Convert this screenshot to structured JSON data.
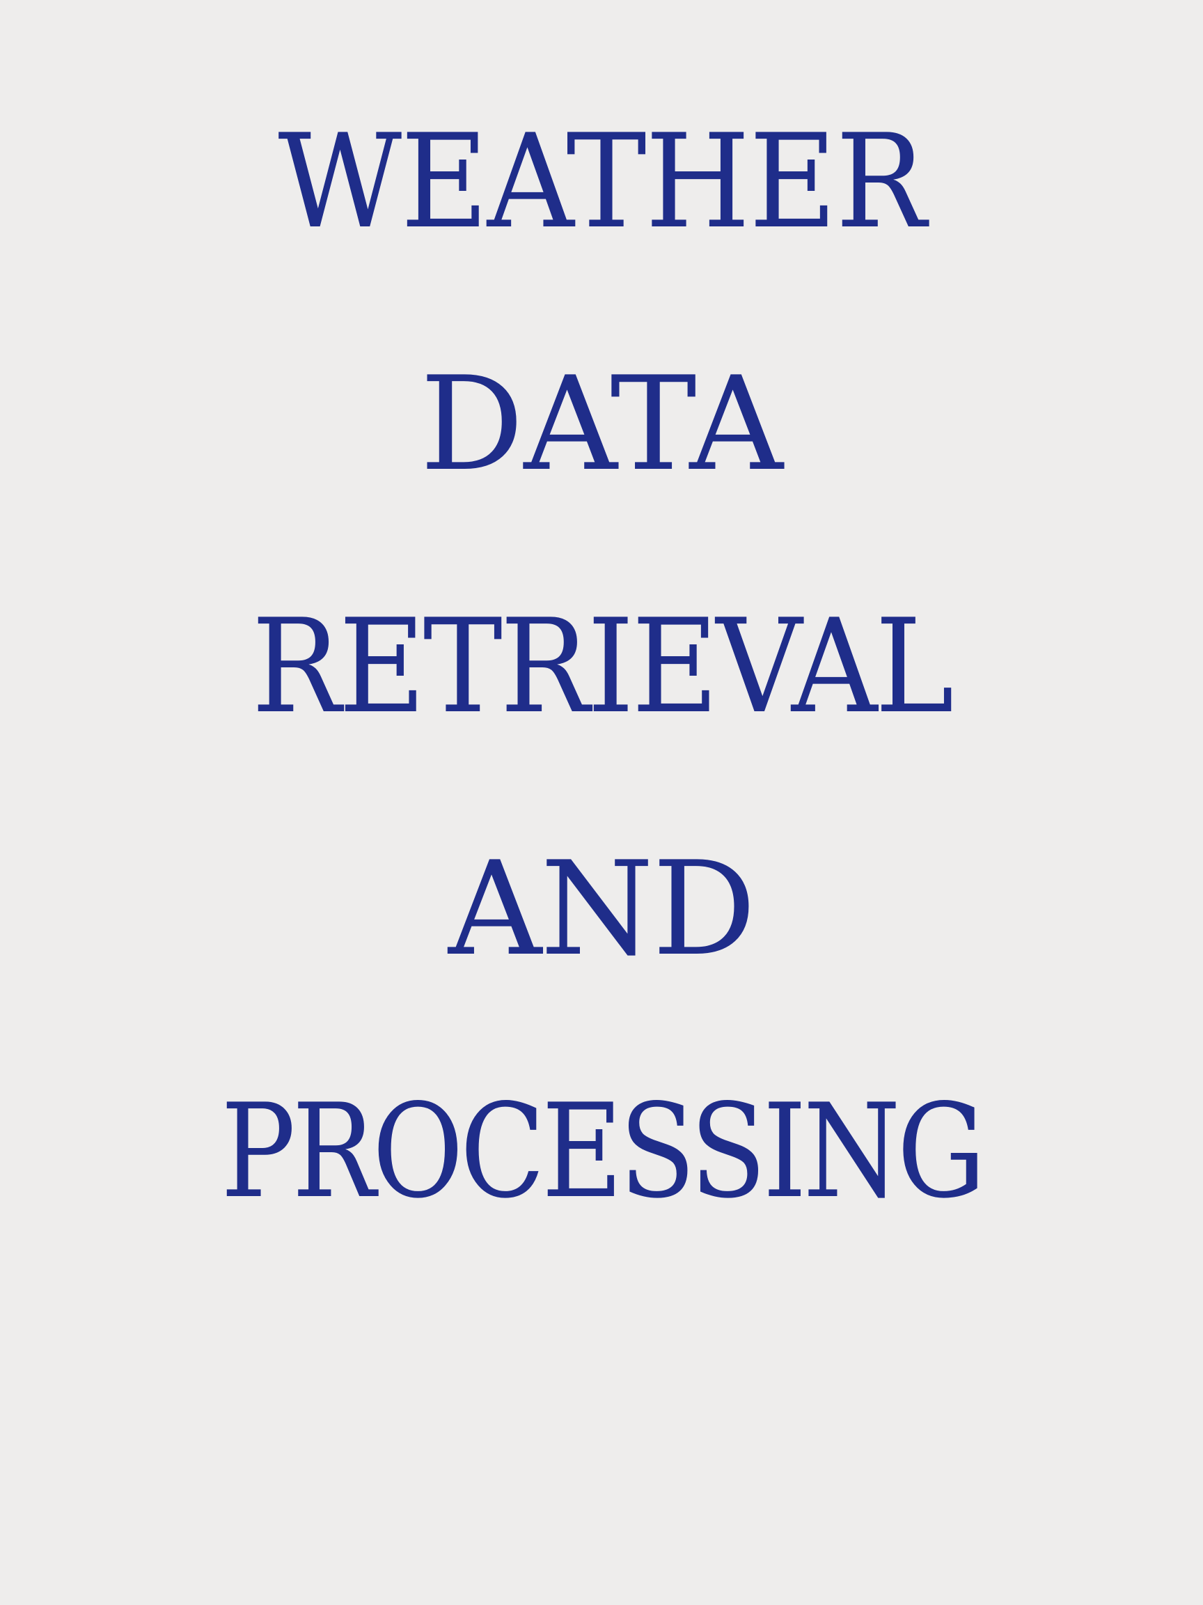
{
  "title": {
    "lines": [
      "WEATHER",
      "DATA",
      "RETRIEVAL",
      "AND",
      "PROCESSING"
    ]
  },
  "colors": {
    "background": "#eeedec",
    "text": "#1f2d8a"
  }
}
